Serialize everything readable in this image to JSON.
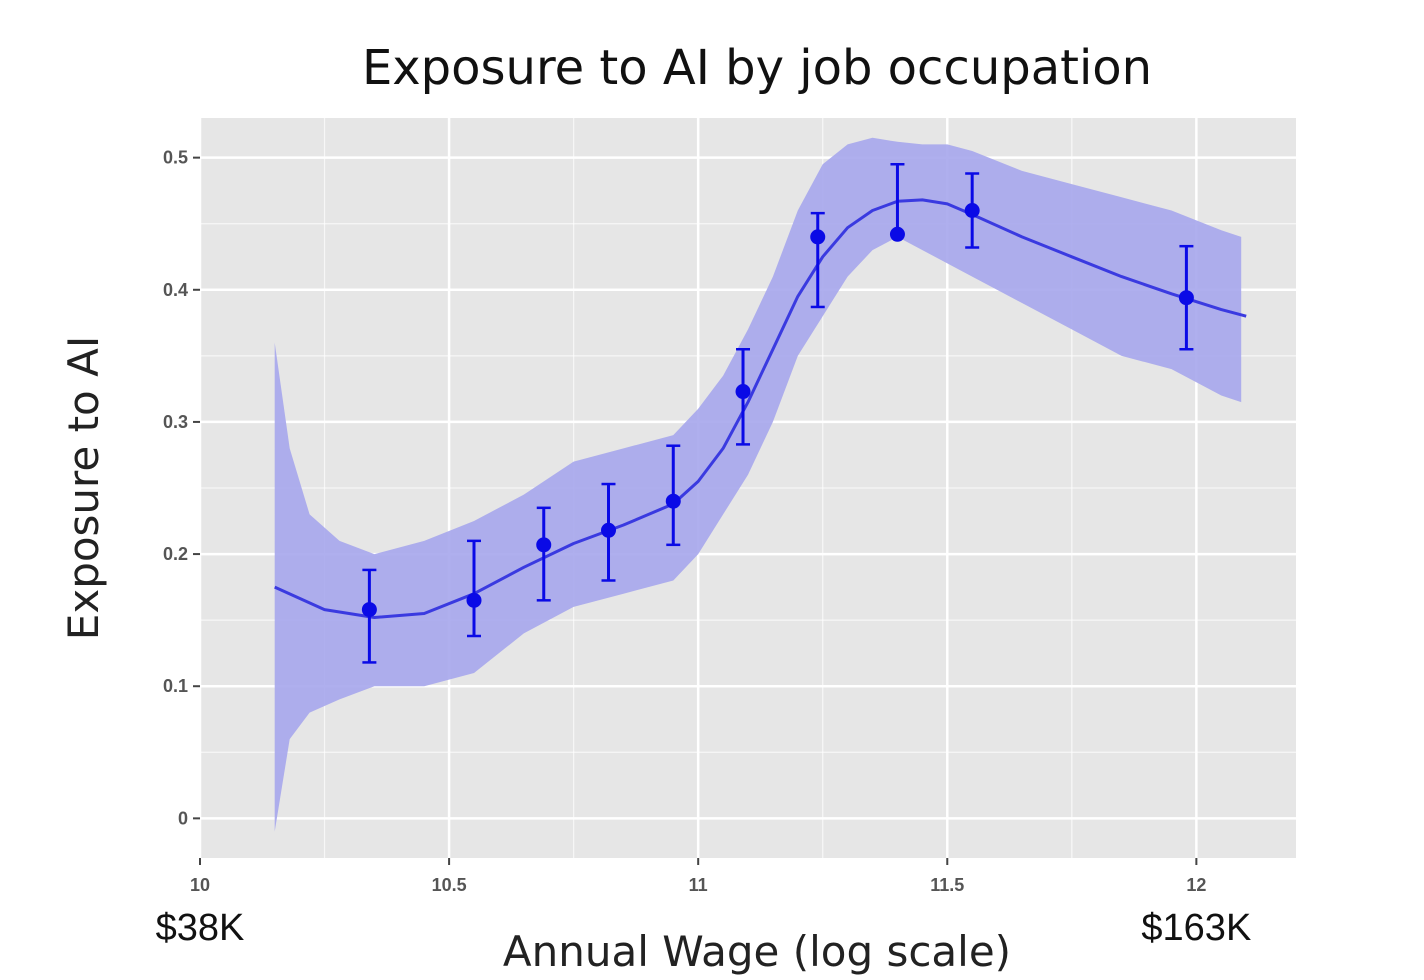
{
  "chart_data": {
    "type": "line",
    "title": "Exposure to AI by job occupation",
    "xlabel": "Annual Wage (log scale)",
    "ylabel": "Exposure to AI",
    "xlim": [
      10,
      12.2
    ],
    "ylim": [
      -0.03,
      0.53
    ],
    "x_ticks": [
      10,
      10.5,
      11,
      11.5,
      12
    ],
    "x_tick_labels": [
      "10",
      "10.5",
      "11",
      "11.5",
      "12"
    ],
    "y_ticks": [
      0,
      0.1,
      0.2,
      0.3,
      0.4,
      0.5
    ],
    "y_tick_labels": [
      "0",
      "0.1",
      "0.2",
      "0.3",
      "0.4",
      "0.5"
    ],
    "wage_labels": [
      {
        "x": 10,
        "text": "$38K"
      },
      {
        "x": 12,
        "text": "$163K"
      }
    ],
    "grid": true,
    "colors": {
      "panel": "#e6e6e6",
      "grid": "#ffffff",
      "band": "#a6a6ec",
      "line": "#3a3ae0",
      "points": "#0a0ae6"
    },
    "fit_line": {
      "x": [
        10.15,
        10.25,
        10.35,
        10.45,
        10.55,
        10.65,
        10.75,
        10.85,
        10.95,
        11.0,
        11.05,
        11.1,
        11.15,
        11.2,
        11.25,
        11.3,
        11.35,
        11.4,
        11.45,
        11.5,
        11.55,
        11.65,
        11.75,
        11.85,
        11.95,
        12.05,
        12.1
      ],
      "y": [
        0.175,
        0.158,
        0.152,
        0.155,
        0.17,
        0.19,
        0.208,
        0.222,
        0.238,
        0.255,
        0.28,
        0.315,
        0.355,
        0.395,
        0.425,
        0.447,
        0.46,
        0.467,
        0.468,
        0.465,
        0.457,
        0.44,
        0.425,
        0.41,
        0.397,
        0.385,
        0.38
      ]
    },
    "confidence_band": {
      "x": [
        10.15,
        10.18,
        10.22,
        10.28,
        10.35,
        10.45,
        10.55,
        10.65,
        10.75,
        10.85,
        10.95,
        11.0,
        11.05,
        11.1,
        11.15,
        11.2,
        11.25,
        11.3,
        11.35,
        11.4,
        11.45,
        11.5,
        11.55,
        11.65,
        11.75,
        11.85,
        11.95,
        12.05,
        12.09
      ],
      "upper": [
        0.36,
        0.28,
        0.23,
        0.21,
        0.2,
        0.21,
        0.225,
        0.245,
        0.27,
        0.28,
        0.29,
        0.31,
        0.335,
        0.37,
        0.41,
        0.46,
        0.495,
        0.51,
        0.515,
        0.512,
        0.51,
        0.51,
        0.505,
        0.49,
        0.48,
        0.47,
        0.46,
        0.445,
        0.44
      ],
      "lower": [
        -0.01,
        0.06,
        0.08,
        0.09,
        0.1,
        0.1,
        0.11,
        0.14,
        0.16,
        0.17,
        0.18,
        0.2,
        0.23,
        0.26,
        0.3,
        0.35,
        0.38,
        0.41,
        0.43,
        0.44,
        0.43,
        0.42,
        0.41,
        0.39,
        0.37,
        0.35,
        0.34,
        0.32,
        0.315
      ]
    },
    "points": [
      {
        "x": 10.34,
        "y": 0.158,
        "lo": 0.118,
        "hi": 0.188
      },
      {
        "x": 10.55,
        "y": 0.165,
        "lo": 0.138,
        "hi": 0.21
      },
      {
        "x": 10.69,
        "y": 0.207,
        "lo": 0.165,
        "hi": 0.235
      },
      {
        "x": 10.82,
        "y": 0.218,
        "lo": 0.18,
        "hi": 0.253
      },
      {
        "x": 10.95,
        "y": 0.24,
        "lo": 0.207,
        "hi": 0.282
      },
      {
        "x": 11.09,
        "y": 0.323,
        "lo": 0.283,
        "hi": 0.355
      },
      {
        "x": 11.24,
        "y": 0.44,
        "lo": 0.387,
        "hi": 0.458
      },
      {
        "x": 11.4,
        "y": 0.442,
        "lo": 0.442,
        "hi": 0.495
      },
      {
        "x": 11.55,
        "y": 0.46,
        "lo": 0.432,
        "hi": 0.488
      },
      {
        "x": 11.98,
        "y": 0.394,
        "lo": 0.355,
        "hi": 0.433
      }
    ]
  }
}
